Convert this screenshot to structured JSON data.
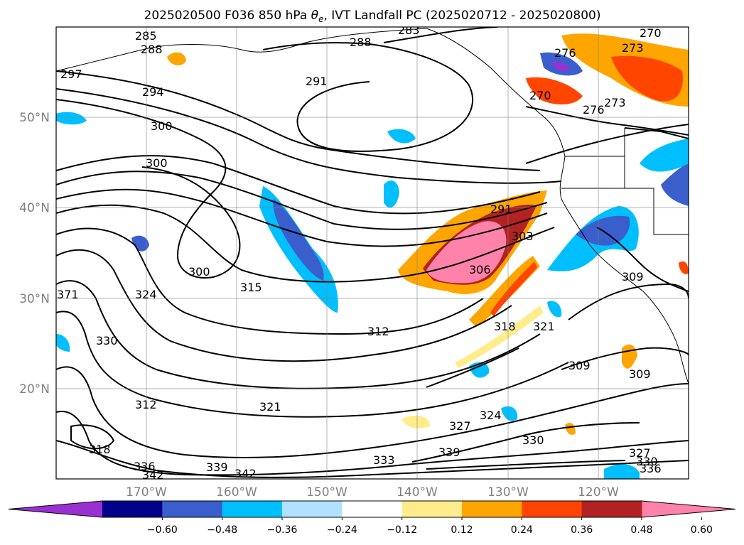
{
  "title": {
    "prefix": "2025020500 F036 850 hPa ",
    "var_symbol": "θ",
    "var_sub": "e",
    "suffix": ", IVT Landfall PC (2025020712 - 2025020800)"
  },
  "map": {
    "projection": "PlateCarree",
    "lon_range": [
      -180,
      -110
    ],
    "lat_range": [
      10,
      60
    ],
    "lat_ticks": [
      {
        "value": 50,
        "label": "50°N"
      },
      {
        "value": 40,
        "label": "40°N"
      },
      {
        "value": 30,
        "label": "30°N"
      },
      {
        "value": 20,
        "label": "20°N"
      }
    ],
    "lon_ticks": [
      {
        "value": -170,
        "label": "170°W"
      },
      {
        "value": -160,
        "label": "160°W"
      },
      {
        "value": -150,
        "label": "150°W"
      },
      {
        "value": -140,
        "label": "140°W"
      },
      {
        "value": -130,
        "label": "130°W"
      },
      {
        "value": -120,
        "label": "120°W"
      }
    ],
    "gridlines": true,
    "coastlines": true
  },
  "colorbar": {
    "orientation": "horizontal",
    "extend": "both",
    "ticks": [
      "−0.60",
      "−0.48",
      "−0.36",
      "−0.24",
      "−0.12",
      "0.12",
      "0.24",
      "0.36",
      "0.48",
      "0.60"
    ],
    "colors": [
      "#9b30d1",
      "#00008b",
      "#3a5fcd",
      "#00bfff",
      "#b0e2ff",
      "#ffffff",
      "#ffec8b",
      "#ffa500",
      "#ff4500",
      "#b22222",
      "#ff82ab"
    ]
  },
  "contour_labels": [
    "285",
    "288",
    "283",
    "270",
    "273",
    "276",
    "297",
    "294",
    "291",
    "288",
    "300",
    "300",
    "273",
    "276",
    "270",
    "291",
    "303",
    "306",
    "309",
    "300",
    "315",
    "324",
    "330",
    "312",
    "318",
    "321",
    "309",
    "309",
    "321",
    "312",
    "318",
    "327",
    "324",
    "330",
    "336",
    "342",
    "339",
    "342",
    "333",
    "339",
    "327",
    "330",
    "336",
    "371"
  ],
  "fill_regions": [
    {
      "name": "pink-core-ne-pacific",
      "value": 0.6,
      "color": "#ff82ab"
    },
    {
      "name": "orange-ne-pacific",
      "value": 0.36,
      "color": "#ffa500"
    },
    {
      "name": "blue-central-pacific",
      "value": -0.48,
      "color": "#3a5fcd"
    },
    {
      "name": "blue-california",
      "value": -0.36,
      "color": "#3a5fcd"
    },
    {
      "name": "red-nw-coast",
      "value": 0.48,
      "color": "#ff4500"
    }
  ]
}
